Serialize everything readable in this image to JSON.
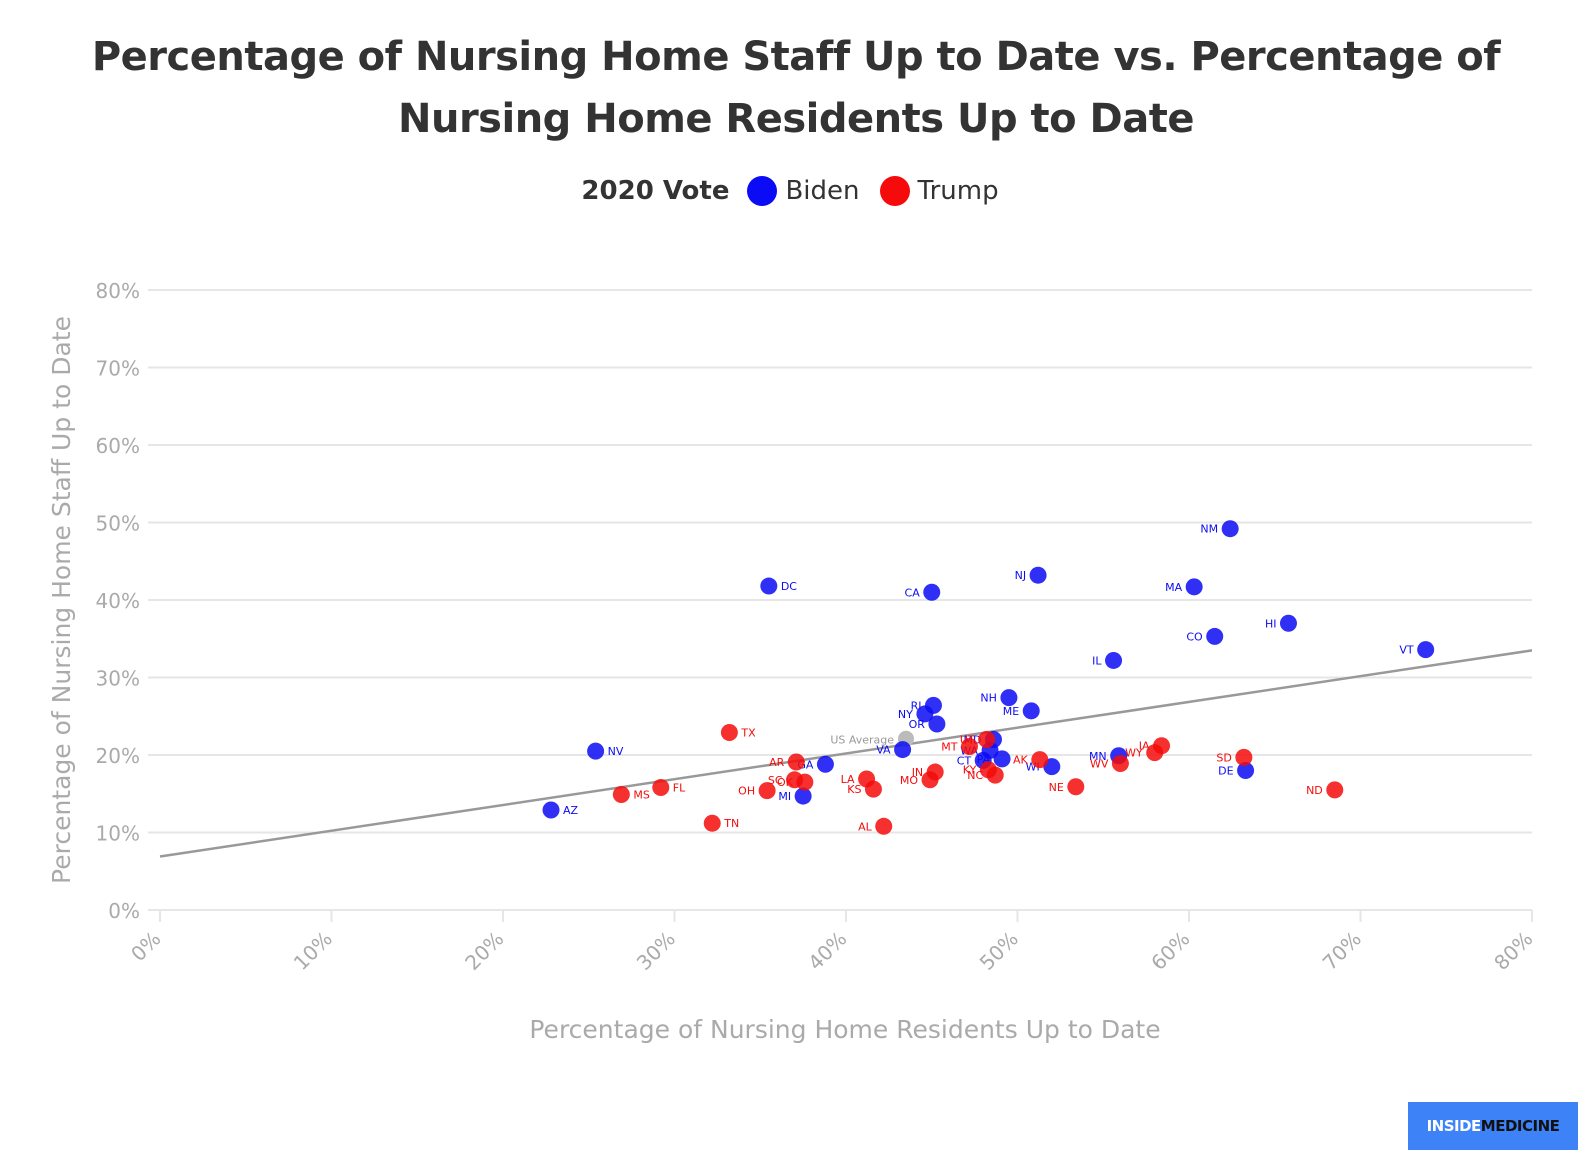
{
  "chart_data": {
    "type": "scatter",
    "title": "Percentage of Nursing Home Staff Up to Date vs. Percentage of Nursing Home Residents Up to Date",
    "title_lines": [
      "Percentage of Nursing Home Staff Up to Date vs. Percentage of",
      "Nursing Home Residents Up to Date"
    ],
    "xlabel": "Percentage of Nursing Home Residents Up to Date",
    "ylabel": "Percentage of Nursing Home Staff Up to Date",
    "xlim": [
      0,
      80
    ],
    "ylim": [
      0,
      80
    ],
    "x_ticks": [
      "0%",
      "10%",
      "20%",
      "30%",
      "40%",
      "50%",
      "60%",
      "70%",
      "80%"
    ],
    "y_ticks": [
      "0%",
      "10%",
      "20%",
      "30%",
      "40%",
      "50%",
      "60%",
      "70%",
      "80%"
    ],
    "grid": true,
    "legend": {
      "title": "2020 Vote",
      "placement": "top-center",
      "entries": [
        {
          "name": "Biden",
          "color": "#0b0bf5"
        },
        {
          "name": "Trump",
          "color": "#f50b0b"
        }
      ]
    },
    "trendline": {
      "start": [
        0,
        6.9
      ],
      "end": [
        80,
        33.5
      ],
      "color": "#999999"
    },
    "average_point": {
      "label": "US Average",
      "x": 43.5,
      "y": 22.1,
      "color": "#bbbbbb"
    },
    "series": [
      {
        "name": "Biden",
        "color": "#0b0bf5",
        "points": [
          {
            "label": "NM",
            "x": 62.4,
            "y": 49.2
          },
          {
            "label": "DC",
            "x": 35.5,
            "y": 41.8
          },
          {
            "label": "CA",
            "x": 45.0,
            "y": 41.0
          },
          {
            "label": "NJ",
            "x": 51.2,
            "y": 43.2
          },
          {
            "label": "MA",
            "x": 60.3,
            "y": 41.7
          },
          {
            "label": "HI",
            "x": 65.8,
            "y": 37.0
          },
          {
            "label": "CO",
            "x": 61.5,
            "y": 35.3
          },
          {
            "label": "VT",
            "x": 73.8,
            "y": 33.6
          },
          {
            "label": "IL",
            "x": 55.6,
            "y": 32.2
          },
          {
            "label": "NH",
            "x": 49.5,
            "y": 27.4
          },
          {
            "label": "ME",
            "x": 50.8,
            "y": 25.7
          },
          {
            "label": "RI",
            "x": 45.1,
            "y": 26.4
          },
          {
            "label": "NY",
            "x": 44.6,
            "y": 25.3
          },
          {
            "label": "OR",
            "x": 45.3,
            "y": 24.0
          },
          {
            "label": "VA",
            "x": 43.3,
            "y": 20.7
          },
          {
            "label": "NV",
            "x": 25.4,
            "y": 20.5
          },
          {
            "label": "GA",
            "x": 38.8,
            "y": 18.8
          },
          {
            "label": "MI",
            "x": 37.5,
            "y": 14.7
          },
          {
            "label": "AZ",
            "x": 22.8,
            "y": 12.9
          },
          {
            "label": "DE",
            "x": 63.3,
            "y": 18.0
          },
          {
            "label": "MN",
            "x": 55.9,
            "y": 19.9
          },
          {
            "label": "WI",
            "x": 52.0,
            "y": 18.5
          },
          {
            "label": "WA",
            "x": 48.4,
            "y": 20.6
          },
          {
            "label": "CT",
            "x": 48.0,
            "y": 19.3
          },
          {
            "label": "PA",
            "x": 49.1,
            "y": 19.5
          },
          {
            "label": "MD",
            "x": 48.6,
            "y": 22.0
          }
        ]
      },
      {
        "name": "Trump",
        "color": "#f50b0b",
        "points": [
          {
            "label": "TX",
            "x": 33.2,
            "y": 22.9
          },
          {
            "label": "AR",
            "x": 37.1,
            "y": 19.1
          },
          {
            "label": "SC",
            "x": 37.0,
            "y": 16.8
          },
          {
            "label": "OK",
            "x": 37.6,
            "y": 16.5
          },
          {
            "label": "OH",
            "x": 35.4,
            "y": 15.4
          },
          {
            "label": "FL",
            "x": 29.2,
            "y": 15.8
          },
          {
            "label": "MS",
            "x": 26.9,
            "y": 14.9
          },
          {
            "label": "TN",
            "x": 32.2,
            "y": 11.2
          },
          {
            "label": "LA",
            "x": 41.2,
            "y": 16.9
          },
          {
            "label": "KS",
            "x": 41.6,
            "y": 15.6
          },
          {
            "label": "AL",
            "x": 42.2,
            "y": 10.8
          },
          {
            "label": "IN",
            "x": 45.2,
            "y": 17.8
          },
          {
            "label": "MO",
            "x": 44.9,
            "y": 16.8
          },
          {
            "label": "MT",
            "x": 47.2,
            "y": 21.1
          },
          {
            "label": "UT",
            "x": 48.2,
            "y": 22.0
          },
          {
            "label": "KY",
            "x": 48.3,
            "y": 18.1
          },
          {
            "label": "NC",
            "x": 48.7,
            "y": 17.4
          },
          {
            "label": "AK",
            "x": 51.3,
            "y": 19.4
          },
          {
            "label": "NE",
            "x": 53.4,
            "y": 15.9
          },
          {
            "label": "WV",
            "x": 56.0,
            "y": 18.9
          },
          {
            "label": "WY",
            "x": 58.0,
            "y": 20.3
          },
          {
            "label": "IA",
            "x": 58.4,
            "y": 21.2
          },
          {
            "label": "SD",
            "x": 63.2,
            "y": 19.7
          },
          {
            "label": "ND",
            "x": 68.5,
            "y": 15.5
          }
        ]
      }
    ]
  },
  "branding": {
    "logo_part1": "INSIDE",
    "logo_part2": "MEDICINE"
  }
}
